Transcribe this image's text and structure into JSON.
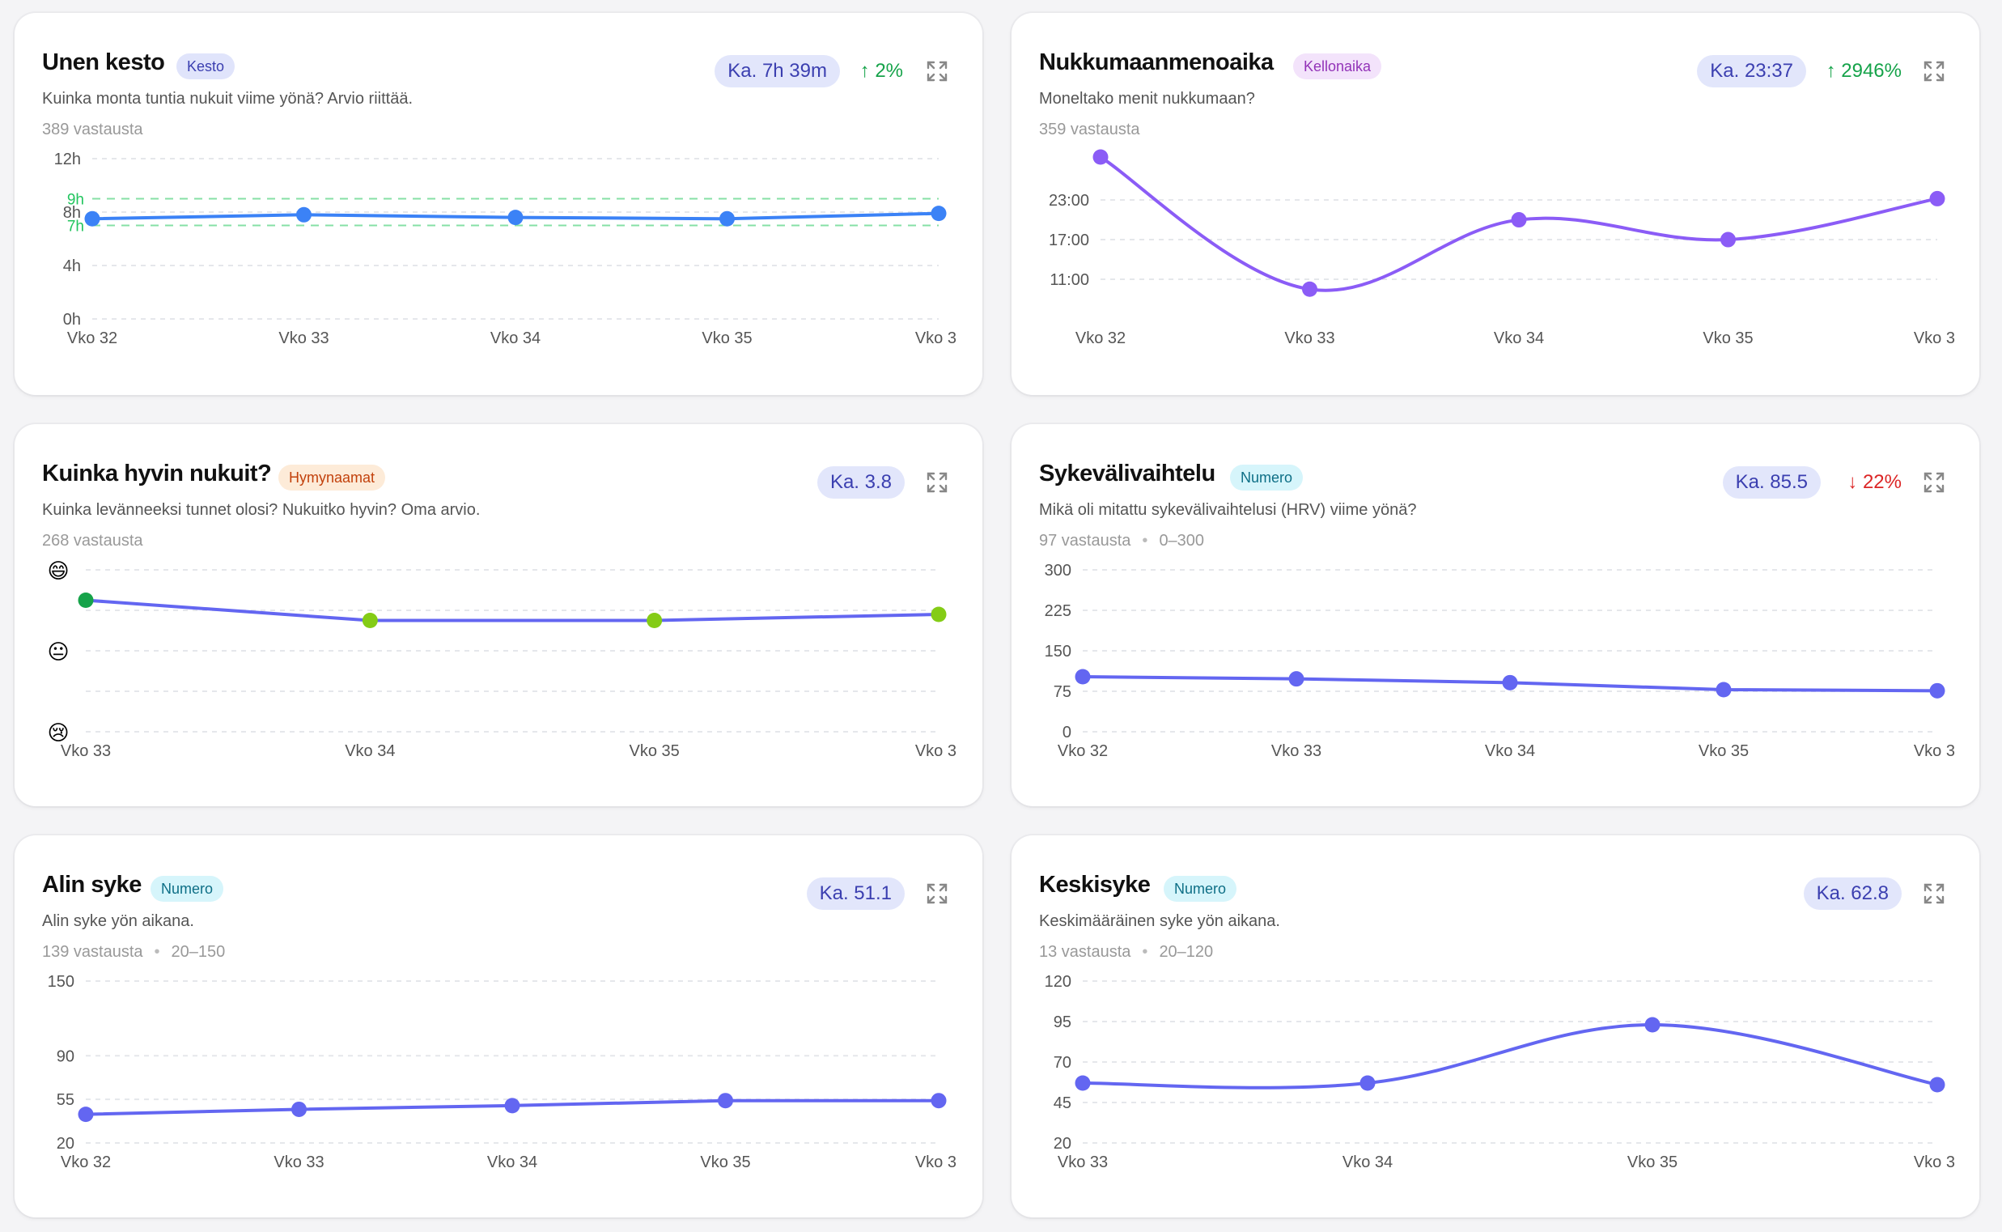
{
  "colors": {
    "line_blue": "#3b82f6",
    "line_purple": "#8b5cf6",
    "line_indigo": "#6366f1",
    "good_green": "#22c55e",
    "grid": "#e5e7eb",
    "axis_text": "#555555"
  },
  "cards": [
    {
      "title": "Unen kesto",
      "badge": "Kesto",
      "description": "Kuinka monta tuntia nukuit viime yönä? Arvio riittää.",
      "responses": "389 vastausta",
      "range": "",
      "average": "Ka. 7h 39m",
      "trend": "2%",
      "trend_direction": "up",
      "expand_icon": "expand-icon",
      "chart_data": {
        "type": "line",
        "x": [
          "Vko 32",
          "Vko 33",
          "Vko 34",
          "Vko 35",
          "Vko 3"
        ],
        "y_ticks": [
          "12h",
          "8h",
          "4h",
          "0h"
        ],
        "y_tick_values": [
          12,
          8,
          4,
          0
        ],
        "ylim": [
          0,
          12
        ],
        "reference_band": {
          "labels": [
            "9h",
            "7h"
          ],
          "values": [
            9,
            7
          ]
        },
        "series": [
          {
            "values": [
              7.5,
              7.8,
              7.6,
              7.5,
              7.9
            ]
          }
        ]
      }
    },
    {
      "title": "Nukkumaanmenoaika",
      "badge": "Kellonaika",
      "description": "Moneltako menit nukkumaan?",
      "responses": "359 vastausta",
      "range": "",
      "average": "Ka. 23:37",
      "trend": "2946%",
      "trend_direction": "up",
      "expand_icon": "expand-icon",
      "chart_data": {
        "type": "line",
        "x": [
          "Vko 32",
          "Vko 33",
          "Vko 34",
          "Vko 35",
          "Vko 3"
        ],
        "y_ticks": [
          "23:00",
          "17:00",
          "11:00"
        ],
        "y_tick_values": [
          23,
          17,
          11
        ],
        "ylim": [
          5,
          29.5
        ],
        "series": [
          {
            "values": [
              29.5,
              9.5,
              20,
              17,
              23.2
            ]
          }
        ]
      }
    },
    {
      "title": "Kuinka hyvin nukuit?",
      "badge": "Hymynaamat",
      "description": "Kuinka levänneeksi tunnet olosi? Nukuitko hyvin? Oma arvio.",
      "responses": "268 vastausta",
      "range": "",
      "average": "Ka. 3.8",
      "trend": "",
      "trend_direction": "",
      "expand_icon": "expand-icon",
      "chart_data": {
        "type": "line",
        "x": [
          "Vko 33",
          "Vko 34",
          "Vko 35",
          "Vko 3"
        ],
        "y_ticks": [
          "😄",
          "😐",
          "😢"
        ],
        "y_tick_values": [
          5,
          3,
          1
        ],
        "ylim": [
          1,
          5
        ],
        "series": [
          {
            "values": [
              4.25,
              3.75,
              3.75,
              3.9
            ]
          }
        ]
      }
    },
    {
      "title": "Sykevälivaihtelu",
      "badge": "Numero",
      "description": "Mikä oli mitattu sykevälivaihtelusi (HRV) viime yönä?",
      "responses": "97 vastausta",
      "range": "0–300",
      "average": "Ka. 85.5",
      "trend": "22%",
      "trend_direction": "down",
      "expand_icon": "expand-icon",
      "chart_data": {
        "type": "line",
        "x": [
          "Vko 32",
          "Vko 33",
          "Vko 34",
          "Vko 35",
          "Vko 3"
        ],
        "y_ticks": [
          "300",
          "225",
          "150",
          "75",
          "0"
        ],
        "y_tick_values": [
          300,
          225,
          150,
          75,
          0
        ],
        "ylim": [
          0,
          300
        ],
        "series": [
          {
            "values": [
              102,
              98,
              91,
              78,
              76
            ]
          }
        ]
      }
    },
    {
      "title": "Alin syke",
      "badge": "Numero",
      "description": "Alin syke yön aikana.",
      "responses": "139 vastausta",
      "range": "20–150",
      "average": "Ka. 51.1",
      "trend": "",
      "trend_direction": "",
      "expand_icon": "expand-icon",
      "chart_data": {
        "type": "line",
        "x": [
          "Vko 32",
          "Vko 33",
          "Vko 34",
          "Vko 35",
          "Vko 3"
        ],
        "y_ticks": [
          "150",
          "90",
          "55",
          "20"
        ],
        "y_tick_values": [
          150,
          90,
          55,
          20
        ],
        "ylim": [
          20,
          150
        ],
        "series": [
          {
            "values": [
              43,
              47,
              50,
              54,
              54
            ]
          }
        ]
      }
    },
    {
      "title": "Keskisyke",
      "badge": "Numero",
      "description": "Keskimääräinen syke yön aikana.",
      "responses": "13 vastausta",
      "range": "20–120",
      "average": "Ka. 62.8",
      "trend": "",
      "trend_direction": "",
      "expand_icon": "expand-icon",
      "chart_data": {
        "type": "line",
        "x": [
          "Vko 33",
          "Vko 34",
          "Vko 35",
          "Vko 3"
        ],
        "y_ticks": [
          "120",
          "95",
          "70",
          "45",
          "20"
        ],
        "y_tick_values": [
          120,
          95,
          70,
          45,
          20
        ],
        "ylim": [
          20,
          120
        ],
        "series": [
          {
            "values": [
              57,
              57,
              93,
              56
            ]
          }
        ]
      }
    }
  ]
}
